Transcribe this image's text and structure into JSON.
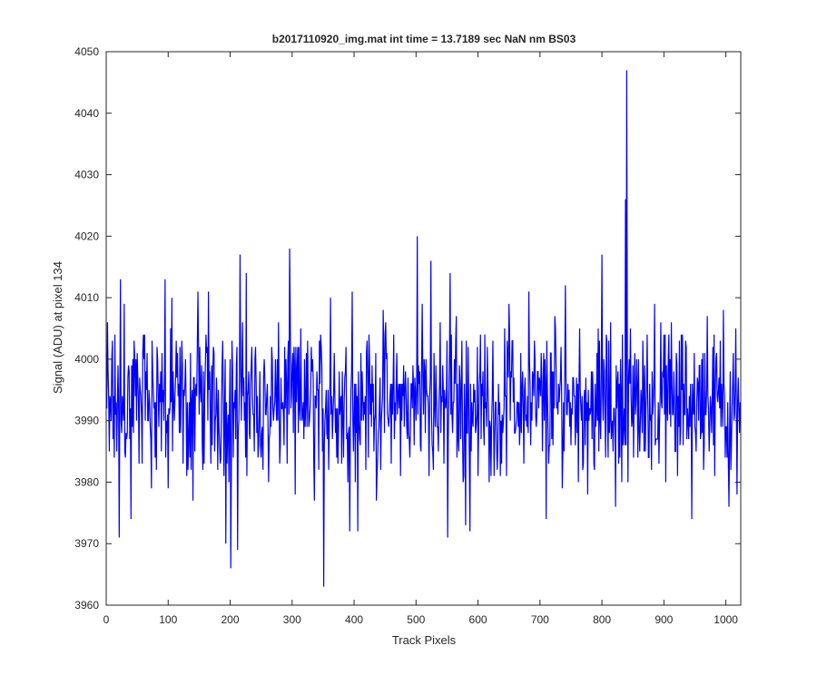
{
  "chart_data": {
    "type": "line",
    "title": "b2017110920_img.mat int time = 13.7189 sec  NaN nm BS03",
    "xlabel": "Track Pixels",
    "ylabel": "Signal (ADU) at pixel 134",
    "xlim": [
      0,
      1024
    ],
    "ylim": [
      3960,
      4050
    ],
    "xticks": [
      0,
      100,
      200,
      300,
      400,
      500,
      600,
      700,
      800,
      900,
      1000
    ],
    "yticks": [
      3960,
      3970,
      3980,
      3990,
      4000,
      4010,
      4020,
      4030,
      4040,
      4050
    ],
    "grid": false,
    "line_color": "#0000ff",
    "num_points": 1024,
    "anchor_points": [
      {
        "x": 2,
        "y": 4006
      },
      {
        "x": 5,
        "y": 3985
      },
      {
        "x": 9,
        "y": 4000
      },
      {
        "x": 13,
        "y": 3984
      },
      {
        "x": 18,
        "y": 3992
      },
      {
        "x": 21,
        "y": 3971
      },
      {
        "x": 23,
        "y": 4013
      },
      {
        "x": 29,
        "y": 4009
      },
      {
        "x": 40,
        "y": 3974
      },
      {
        "x": 45,
        "y": 4003
      },
      {
        "x": 62,
        "y": 4004
      },
      {
        "x": 73,
        "y": 3979
      },
      {
        "x": 82,
        "y": 4002
      },
      {
        "x": 95,
        "y": 4013
      },
      {
        "x": 100,
        "y": 3979
      },
      {
        "x": 106,
        "y": 4010
      },
      {
        "x": 130,
        "y": 3981
      },
      {
        "x": 140,
        "y": 3977
      },
      {
        "x": 148,
        "y": 4011
      },
      {
        "x": 165,
        "y": 4011
      },
      {
        "x": 175,
        "y": 3985
      },
      {
        "x": 188,
        "y": 4003
      },
      {
        "x": 193,
        "y": 3970
      },
      {
        "x": 201,
        "y": 3966
      },
      {
        "x": 212,
        "y": 3969
      },
      {
        "x": 216,
        "y": 4017
      },
      {
        "x": 226,
        "y": 4014
      },
      {
        "x": 250,
        "y": 3984
      },
      {
        "x": 262,
        "y": 3980
      },
      {
        "x": 275,
        "y": 3990
      },
      {
        "x": 289,
        "y": 3992
      },
      {
        "x": 296,
        "y": 4018
      },
      {
        "x": 305,
        "y": 3978
      },
      {
        "x": 320,
        "y": 4000
      },
      {
        "x": 336,
        "y": 3977
      },
      {
        "x": 349,
        "y": 3985
      },
      {
        "x": 351,
        "y": 3963
      },
      {
        "x": 362,
        "y": 4010
      },
      {
        "x": 380,
        "y": 3983
      },
      {
        "x": 393,
        "y": 3972
      },
      {
        "x": 397,
        "y": 4011
      },
      {
        "x": 406,
        "y": 3972
      },
      {
        "x": 420,
        "y": 4001
      },
      {
        "x": 436,
        "y": 3977
      },
      {
        "x": 447,
        "y": 4008
      },
      {
        "x": 460,
        "y": 3983
      },
      {
        "x": 474,
        "y": 3996
      },
      {
        "x": 490,
        "y": 3984
      },
      {
        "x": 502,
        "y": 4020
      },
      {
        "x": 510,
        "y": 4009
      },
      {
        "x": 524,
        "y": 4016
      },
      {
        "x": 540,
        "y": 3988
      },
      {
        "x": 551,
        "y": 3971
      },
      {
        "x": 555,
        "y": 4014
      },
      {
        "x": 565,
        "y": 4007
      },
      {
        "x": 580,
        "y": 3973
      },
      {
        "x": 587,
        "y": 3972
      },
      {
        "x": 600,
        "y": 3981
      },
      {
        "x": 615,
        "y": 4002
      },
      {
        "x": 632,
        "y": 3985
      },
      {
        "x": 650,
        "y": 4009
      },
      {
        "x": 670,
        "y": 3988
      },
      {
        "x": 682,
        "y": 4011
      },
      {
        "x": 700,
        "y": 3996
      },
      {
        "x": 710,
        "y": 3974
      },
      {
        "x": 724,
        "y": 4007
      },
      {
        "x": 741,
        "y": 4012
      },
      {
        "x": 758,
        "y": 3990
      },
      {
        "x": 777,
        "y": 3978
      },
      {
        "x": 795,
        "y": 3985
      },
      {
        "x": 800,
        "y": 4017
      },
      {
        "x": 812,
        "y": 3988
      },
      {
        "x": 822,
        "y": 3976
      },
      {
        "x": 830,
        "y": 4000
      },
      {
        "x": 835,
        "y": 3989
      },
      {
        "x": 838,
        "y": 4026
      },
      {
        "x": 840,
        "y": 4047
      },
      {
        "x": 842,
        "y": 3980
      },
      {
        "x": 850,
        "y": 3999
      },
      {
        "x": 863,
        "y": 3995
      },
      {
        "x": 875,
        "y": 3984
      },
      {
        "x": 885,
        "y": 4009
      },
      {
        "x": 896,
        "y": 3993
      },
      {
        "x": 912,
        "y": 4006
      },
      {
        "x": 922,
        "y": 3981
      },
      {
        "x": 935,
        "y": 4003
      },
      {
        "x": 945,
        "y": 3974
      },
      {
        "x": 958,
        "y": 3999
      },
      {
        "x": 970,
        "y": 4007
      },
      {
        "x": 980,
        "y": 3986
      },
      {
        "x": 996,
        "y": 4008
      },
      {
        "x": 1005,
        "y": 3976
      },
      {
        "x": 1012,
        "y": 4001
      },
      {
        "x": 1018,
        "y": 3978
      },
      {
        "x": 1024,
        "y": 3990
      }
    ],
    "noise_center": 3993,
    "noise_amplitude": 9
  }
}
